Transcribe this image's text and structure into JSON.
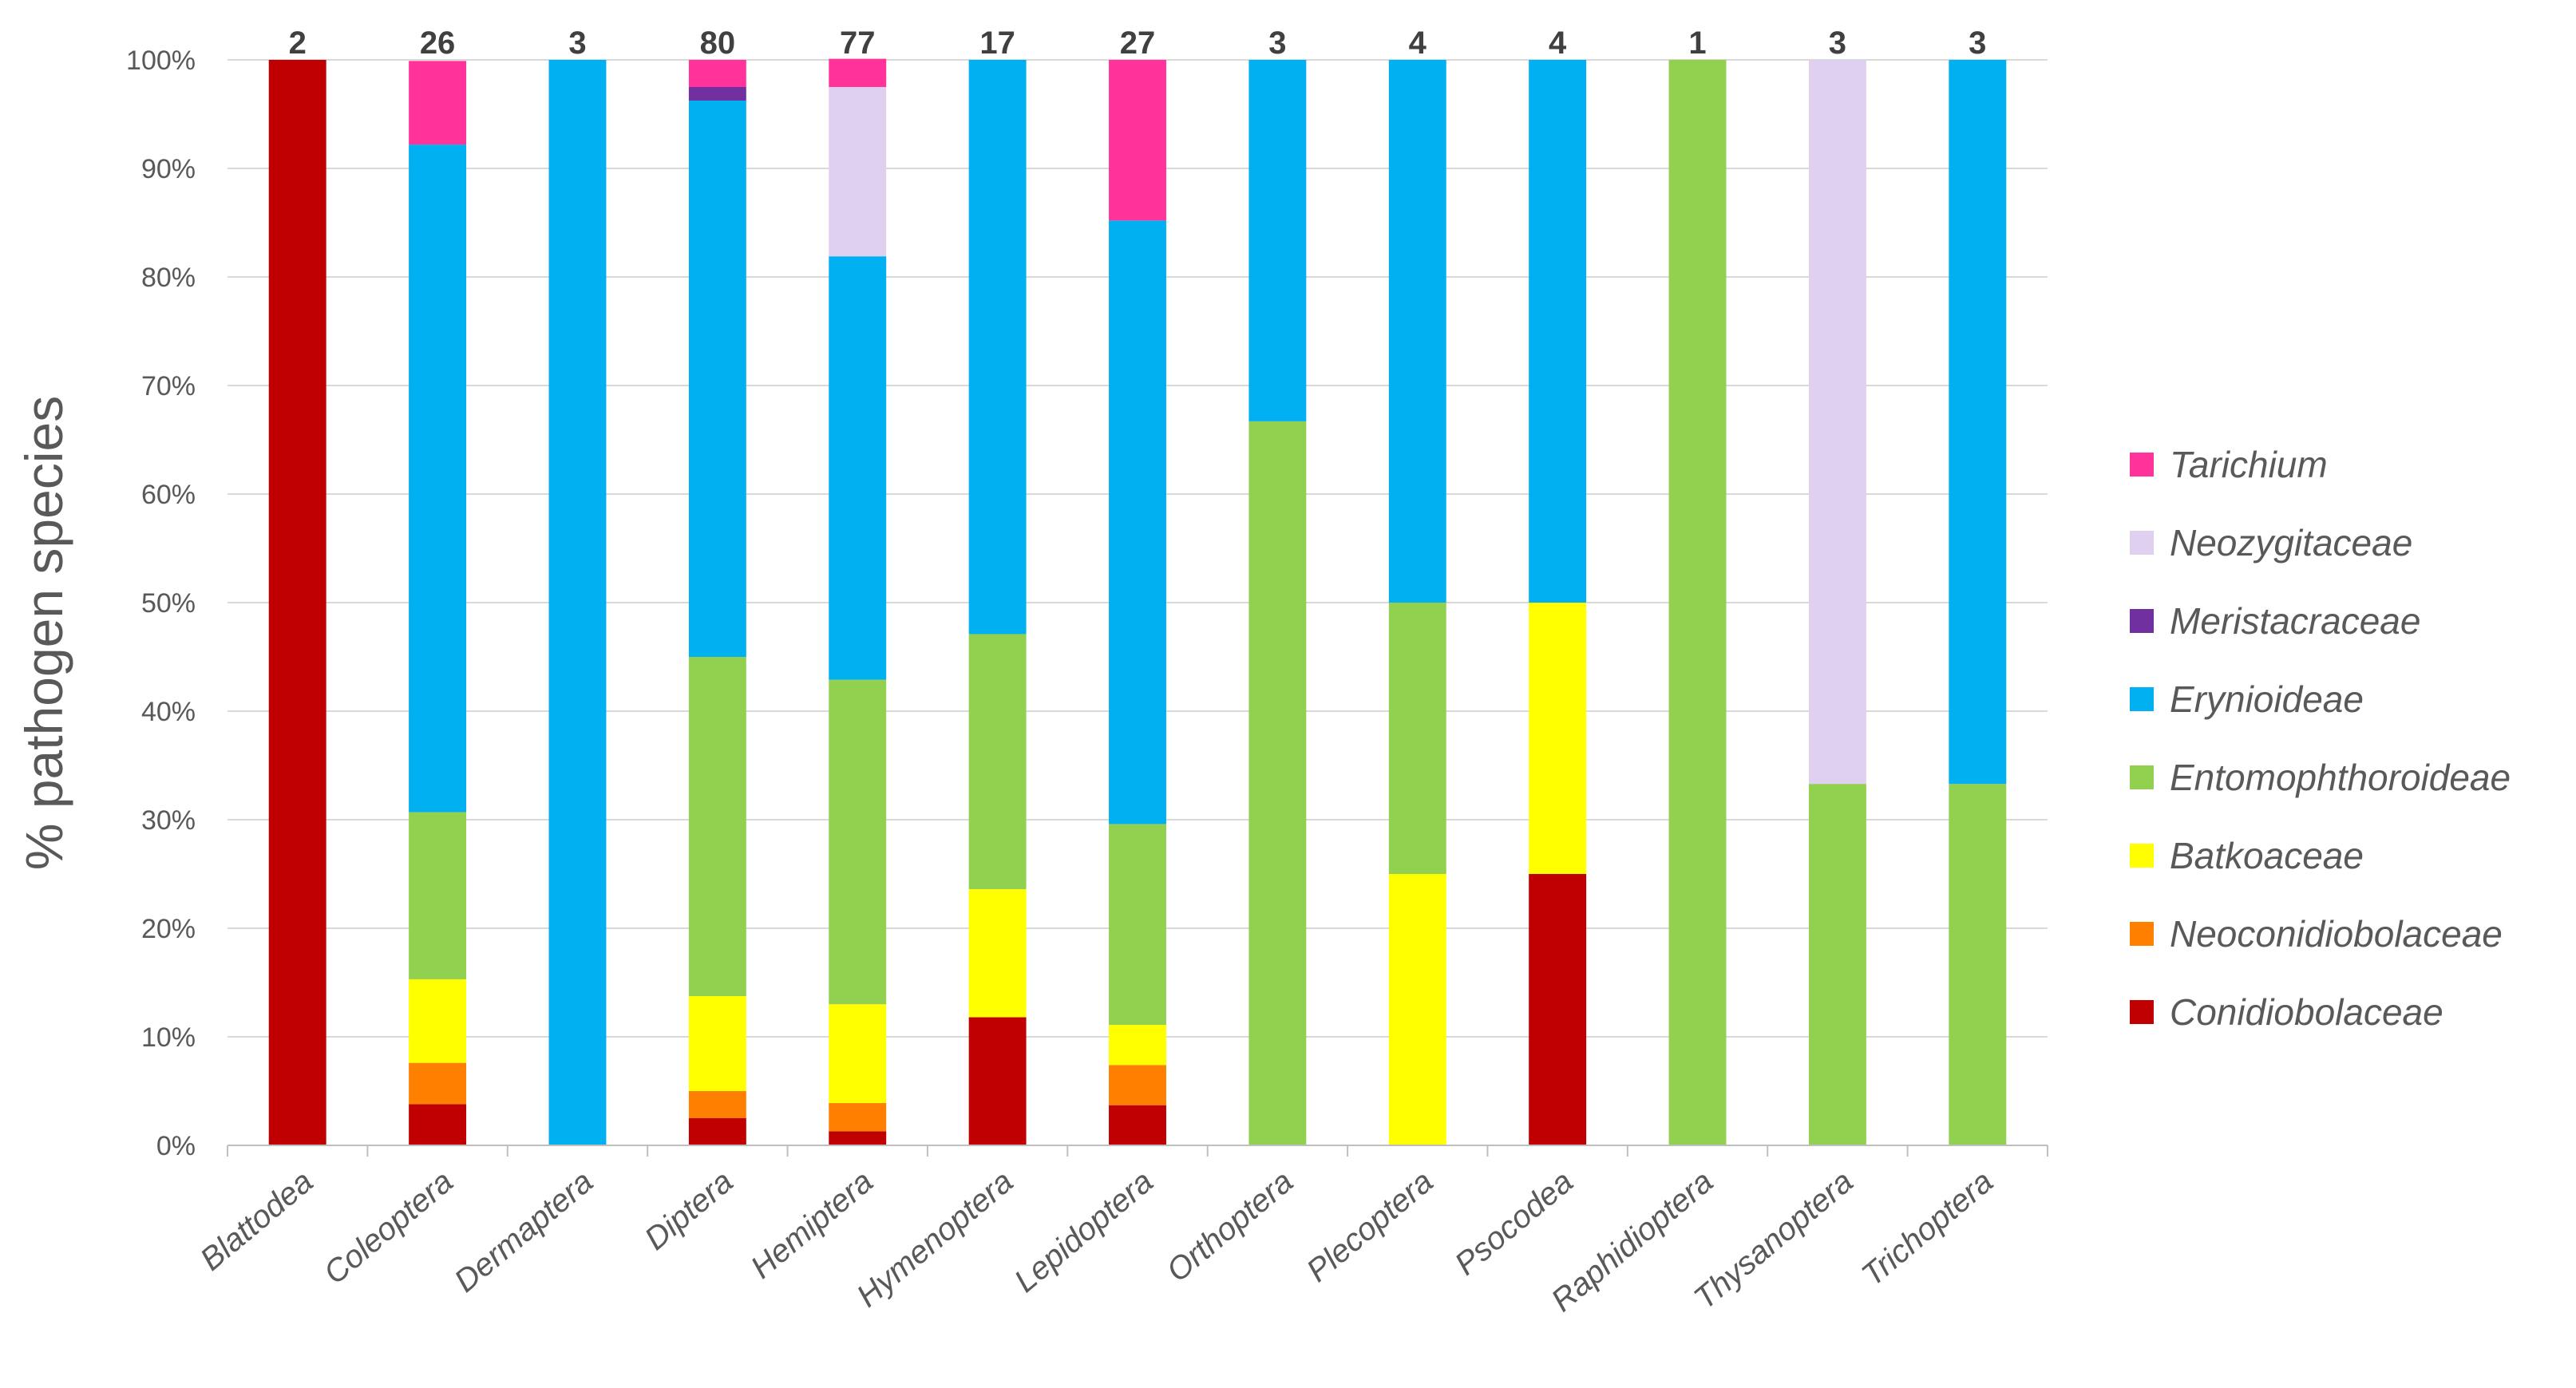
{
  "chart_data": {
    "type": "bar",
    "stacked": true,
    "normalized": true,
    "title": "",
    "xlabel": "",
    "ylabel": "% pathogen species",
    "ylim": [
      0,
      100
    ],
    "yticks": [
      "0%",
      "10%",
      "20%",
      "30%",
      "40%",
      "50%",
      "60%",
      "70%",
      "80%",
      "90%",
      "100%"
    ],
    "grid": true,
    "legend_position": "right",
    "categories": [
      "Blattodea",
      "Coleoptera",
      "Dermaptera",
      "Diptera",
      "Hemiptera",
      "Hymenoptera",
      "Lepidoptera",
      "Orthoptera",
      "Plecoptera",
      "Psocodea",
      "Raphidioptera",
      "Thysanoptera",
      "Trichoptera"
    ],
    "totals": [
      "2",
      "26",
      "3",
      "80",
      "77",
      "17",
      "27",
      "3",
      "4",
      "4",
      "1",
      "3",
      "3"
    ],
    "series": [
      {
        "name": "Conidiobolaceae",
        "color": "#C00000",
        "values": [
          100,
          3.8,
          0,
          2.5,
          1.3,
          11.8,
          3.7,
          0,
          0,
          25,
          0,
          0,
          0
        ]
      },
      {
        "name": "Neoconidiobolaceae",
        "color": "#FF7F00",
        "values": [
          0,
          3.8,
          0,
          2.5,
          2.6,
          0,
          3.7,
          0,
          0,
          0,
          0,
          0,
          0
        ]
      },
      {
        "name": "Batkoaceae",
        "color": "#FFFF00",
        "values": [
          0,
          7.7,
          0,
          8.75,
          9.1,
          11.8,
          3.7,
          0,
          25,
          25,
          0,
          0,
          0
        ]
      },
      {
        "name": "Entomophthoroideae",
        "color": "#92D050",
        "values": [
          0,
          15.4,
          0,
          31.25,
          29.9,
          23.5,
          18.5,
          66.7,
          25,
          0,
          100,
          33.3,
          33.3
        ]
      },
      {
        "name": "Erynioideae",
        "color": "#00B0F0",
        "values": [
          0,
          61.5,
          100,
          51.25,
          39.0,
          52.9,
          55.6,
          33.3,
          50,
          50,
          0,
          0,
          66.7
        ]
      },
      {
        "name": "Meristacraceae",
        "color": "#7030A0",
        "values": [
          0,
          0,
          0,
          1.25,
          0,
          0,
          0,
          0,
          0,
          0,
          0,
          0,
          0
        ]
      },
      {
        "name": "Neozygitaceae",
        "color": "#E0D0F0",
        "values": [
          0,
          0,
          0,
          0,
          15.6,
          0,
          0,
          0,
          0,
          0,
          0,
          66.7,
          0
        ]
      },
      {
        "name": "Tarichium",
        "color": "#FF3399",
        "values": [
          0,
          7.7,
          0,
          2.5,
          2.6,
          0,
          14.8,
          0,
          0,
          0,
          0,
          0,
          0
        ]
      }
    ]
  }
}
